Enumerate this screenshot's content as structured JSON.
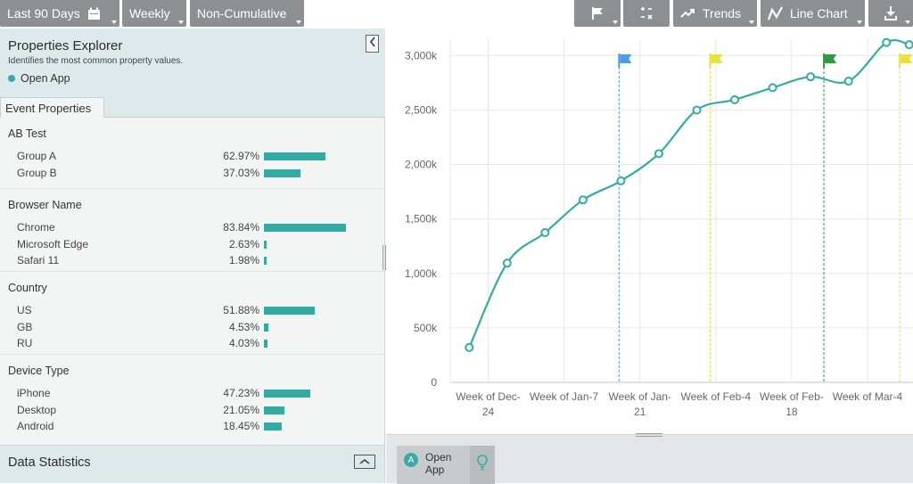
{
  "toolbar": {
    "date_range": "Last 90 Days",
    "interval": "Weekly",
    "cumulative": "Non-Cumulative",
    "trends": "Trends",
    "chart_type": "Line Chart",
    "icons": [
      "calendar-icon",
      "flag-icon",
      "math-ops-icon",
      "trend-icon",
      "line-chart-icon",
      "download-icon"
    ]
  },
  "explorer": {
    "title": "Properties Explorer",
    "subtitle": "Identifies the most common property values.",
    "event": "Open App",
    "tab": "Event Properties",
    "groups": [
      {
        "title": "AB Test",
        "rows": [
          {
            "name": "Group A",
            "pct": "62.97%",
            "value": 62.97
          },
          {
            "name": "Group B",
            "pct": "37.03%",
            "value": 37.03
          }
        ]
      },
      {
        "title": "Browser Name",
        "rows": [
          {
            "name": "Chrome",
            "pct": "83.84%",
            "value": 83.84
          },
          {
            "name": "Microsoft Edge",
            "pct": "2.63%",
            "value": 2.63
          },
          {
            "name": "Safari 11",
            "pct": "1.98%",
            "value": 1.98
          }
        ]
      },
      {
        "title": "Country",
        "rows": [
          {
            "name": "US",
            "pct": "51.88%",
            "value": 51.88
          },
          {
            "name": "GB",
            "pct": "4.53%",
            "value": 4.53
          },
          {
            "name": "RU",
            "pct": "4.03%",
            "value": 4.03
          }
        ]
      },
      {
        "title": "Device Type",
        "rows": [
          {
            "name": "iPhone",
            "pct": "47.23%",
            "value": 47.23
          },
          {
            "name": "Desktop",
            "pct": "21.05%",
            "value": 21.05
          },
          {
            "name": "Android",
            "pct": "18.45%",
            "value": 18.45
          }
        ]
      }
    ],
    "data_statistics": "Data Statistics"
  },
  "legend": {
    "badge": "A",
    "label": "Open App"
  },
  "colors": {
    "accent": "#33aba5",
    "toolbar": "#8d9092",
    "panel": "#dde9ea",
    "flag_blue": "#4a9ee8",
    "flag_yellow": "#e8e23a",
    "flag_green": "#2e9b3e"
  },
  "chart_data": {
    "type": "line",
    "y_ticks": [
      "0",
      "500k",
      "1,000k",
      "1,500k",
      "2,000k",
      "2,500k",
      "3,000k"
    ],
    "ylim": [
      0,
      3150000
    ],
    "x_labels": [
      {
        "line1": "Week of Dec-",
        "line2": "24",
        "x": 1
      },
      {
        "line1": "Week of Jan-7",
        "line2": "",
        "x": 3
      },
      {
        "line1": "Week of Jan-",
        "line2": "21",
        "x": 5
      },
      {
        "line1": "Week of Feb-4",
        "line2": "",
        "x": 7
      },
      {
        "line1": "Week of Feb-",
        "line2": "18",
        "x": 9
      },
      {
        "line1": "Week of Mar-4",
        "line2": "",
        "x": 11
      }
    ],
    "xlim": [
      0,
      12.2
    ],
    "series": [
      {
        "color": "#33aba5",
        "x": [
          0.5,
          1.5,
          2.5,
          3.5,
          4.5,
          5.5,
          6.5,
          7.5,
          8.5,
          9.5,
          10.5,
          11.5,
          12.1
        ],
        "values": [
          320000,
          1095000,
          1375000,
          1675000,
          1850000,
          2100000,
          2500000,
          2595000,
          2705000,
          2805000,
          2765000,
          3120000,
          3100000
        ]
      }
    ],
    "flags": [
      {
        "x": 4.45,
        "color": "#4a9ee8"
      },
      {
        "x": 6.85,
        "color": "#e8e23a"
      },
      {
        "x": 9.85,
        "color": "#2e9b3e"
      },
      {
        "x": 11.85,
        "color": "#e8e23a"
      }
    ],
    "grid": true
  }
}
